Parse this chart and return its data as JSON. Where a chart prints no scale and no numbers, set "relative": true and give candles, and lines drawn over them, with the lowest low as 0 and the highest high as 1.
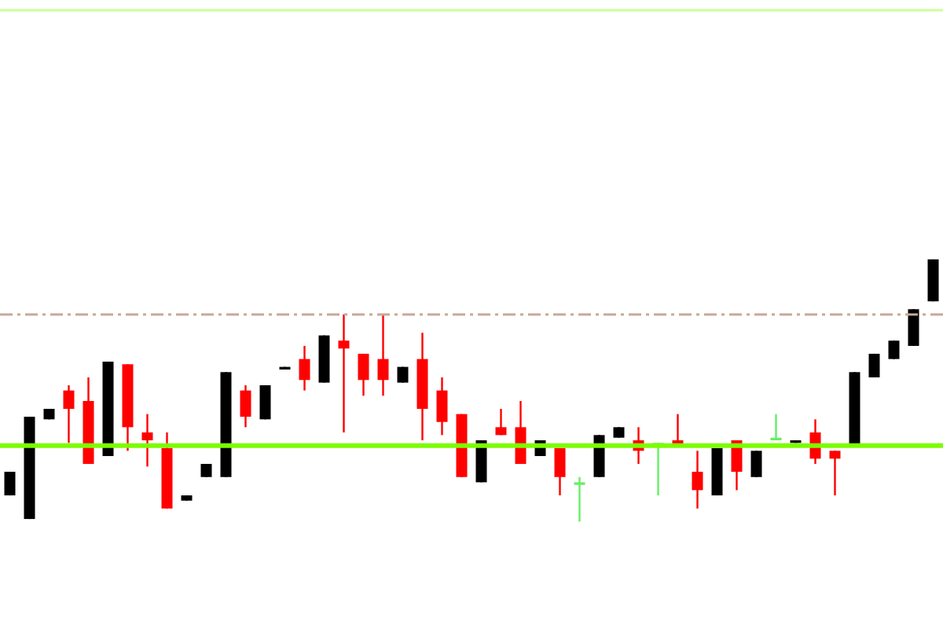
{
  "chart_data": {
    "type": "candlestick",
    "relative": true,
    "categories": [
      null,
      null,
      null,
      null,
      null,
      null,
      null,
      null,
      null,
      null,
      null,
      null,
      null,
      null,
      null,
      null,
      null,
      null,
      null,
      null,
      null,
      null,
      null,
      null,
      null,
      null,
      null,
      null,
      null,
      null,
      null,
      null,
      null,
      null,
      null,
      null,
      null,
      null,
      null,
      null,
      null,
      null,
      null,
      null,
      null,
      null,
      null,
      null
    ],
    "ohlc": [
      [
        0.1,
        0.19,
        0.1,
        0.19
      ],
      [
        0.01,
        0.4,
        0.01,
        0.4
      ],
      [
        0.39,
        0.43,
        0.39,
        0.43
      ],
      [
        0.5,
        0.52,
        0.3,
        0.43
      ],
      [
        0.46,
        0.55,
        0.22,
        0.22
      ],
      [
        0.25,
        0.61,
        0.25,
        0.61
      ],
      [
        0.6,
        0.6,
        0.27,
        0.36
      ],
      [
        0.34,
        0.41,
        0.21,
        0.31
      ],
      [
        0.28,
        0.34,
        0.05,
        0.05
      ],
      [
        0.08,
        0.1,
        0.08,
        0.1
      ],
      [
        0.17,
        0.22,
        0.17,
        0.22
      ],
      [
        0.17,
        0.57,
        0.17,
        0.57
      ],
      [
        0.5,
        0.52,
        0.36,
        0.4
      ],
      [
        0.39,
        0.52,
        0.39,
        0.52
      ],
      [
        0.58,
        0.59,
        0.58,
        0.59
      ],
      [
        0.62,
        0.67,
        0.5,
        0.54
      ],
      [
        0.53,
        0.71,
        0.53,
        0.71
      ],
      [
        0.69,
        0.79,
        0.34,
        0.66
      ],
      [
        0.64,
        0.64,
        0.48,
        0.54
      ],
      [
        0.62,
        0.79,
        0.48,
        0.54
      ],
      [
        0.53,
        0.59,
        0.53,
        0.59
      ],
      [
        0.62,
        0.72,
        0.31,
        0.43
      ],
      [
        0.5,
        0.55,
        0.33,
        0.38
      ],
      [
        0.41,
        0.41,
        0.17,
        0.17
      ],
      [
        0.15,
        0.31,
        0.15,
        0.31
      ],
      [
        0.36,
        0.43,
        0.33,
        0.33
      ],
      [
        0.36,
        0.46,
        0.22,
        0.22
      ],
      [
        0.25,
        0.31,
        0.25,
        0.31
      ],
      [
        0.28,
        0.28,
        0.1,
        0.17
      ],
      [
        0.14,
        0.17,
        0,
        0.15
      ],
      [
        0.17,
        0.33,
        0.17,
        0.33
      ],
      [
        0.32,
        0.36,
        0.32,
        0.36
      ],
      [
        0.31,
        0.36,
        0.22,
        0.27
      ],
      [
        0.29,
        0.3,
        0.1,
        0.3
      ],
      [
        0.31,
        0.41,
        0.29,
        0.29
      ],
      [
        0.19,
        0.27,
        0.05,
        0.12
      ],
      [
        0.1,
        0.28,
        0.1,
        0.28
      ],
      [
        0.31,
        0.31,
        0.12,
        0.19
      ],
      [
        0.17,
        0.27,
        0.17,
        0.27
      ],
      [
        0.31,
        0.41,
        0.31,
        0.32
      ],
      [
        0.3,
        0.31,
        0.3,
        0.31
      ],
      [
        0.34,
        0.39,
        0.22,
        0.24
      ],
      [
        0.27,
        0.27,
        0.1,
        0.24
      ],
      [
        0.29,
        0.57,
        0.29,
        0.57
      ],
      [
        0.55,
        0.64,
        0.55,
        0.64
      ],
      [
        0.62,
        0.69,
        0.62,
        0.69
      ],
      [
        0.67,
        0.81,
        0.67,
        0.81
      ],
      [
        0.84,
        1,
        0.84,
        1
      ]
    ],
    "colors": [
      "#000000",
      "#000000",
      "#000000",
      "#ff0000",
      "#ff0000",
      "#000000",
      "#ff0000",
      "#ff0000",
      "#ff0000",
      "#000000",
      "#000000",
      "#000000",
      "#ff0000",
      "#000000",
      "#000000",
      "#ff0000",
      "#000000",
      "#ff0000",
      "#ff0000",
      "#ff0000",
      "#000000",
      "#ff0000",
      "#ff0000",
      "#ff0000",
      "#000000",
      "#ff0000",
      "#ff0000",
      "#000000",
      "#ff0000",
      "#66ee66",
      "#000000",
      "#000000",
      "#ff0000",
      "#66ee66",
      "#ff0000",
      "#ff0000",
      "#000000",
      "#ff0000",
      "#000000",
      "#66ee66",
      "#000000",
      "#ff0000",
      "#ff0000",
      "#000000",
      "#000000",
      "#000000",
      "#000000",
      "#000000"
    ],
    "ref_lines": [
      {
        "axis": "y",
        "value": 0.29,
        "color": "#7cfc00",
        "line_style": "solid"
      },
      {
        "axis": "y",
        "value": 0.79,
        "color": "#c8a89a",
        "line_style": "dashed"
      },
      {
        "axis": "y",
        "value": 1.95,
        "color": "#ccff99",
        "line_style": "solid"
      }
    ]
  }
}
